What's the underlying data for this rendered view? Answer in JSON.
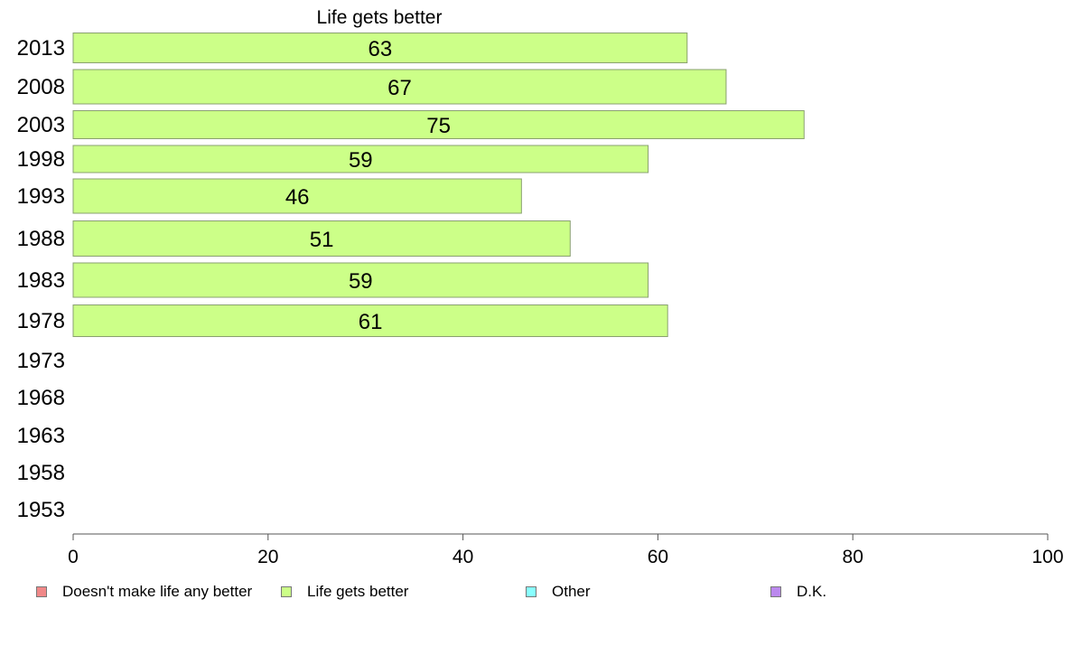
{
  "chart_data": {
    "type": "bar",
    "orientation": "horizontal",
    "title": "Life gets better",
    "categories": [
      "2013",
      "2008",
      "2003",
      "1998",
      "1993",
      "1988",
      "1983",
      "1978",
      "1973",
      "1968",
      "1963",
      "1958",
      "1953"
    ],
    "series": [
      {
        "name": "Life gets better",
        "color": "#ccff88",
        "values": [
          63,
          67,
          75,
          59,
          46,
          51,
          59,
          61,
          null,
          null,
          null,
          null,
          null
        ],
        "labels": [
          "63",
          "67",
          "75",
          "59",
          "46",
          "51",
          "59",
          "61",
          "",
          "",
          "",
          "",
          ""
        ]
      }
    ],
    "xlim": [
      0,
      100
    ],
    "xticks": [
      "0",
      "20",
      "40",
      "60",
      "80",
      "100"
    ],
    "xvalues": [
      0,
      20,
      40,
      60,
      80,
      100
    ],
    "grid": false,
    "legend_position": "bottom",
    "legend": [
      {
        "label": "Doesn't make life any better",
        "color": "#f08888"
      },
      {
        "label": "Life gets better",
        "color": "#ccff88"
      },
      {
        "label": "Other",
        "color": "#88ffff"
      },
      {
        "label": "D.K.",
        "color": "#bb88ee"
      }
    ]
  }
}
